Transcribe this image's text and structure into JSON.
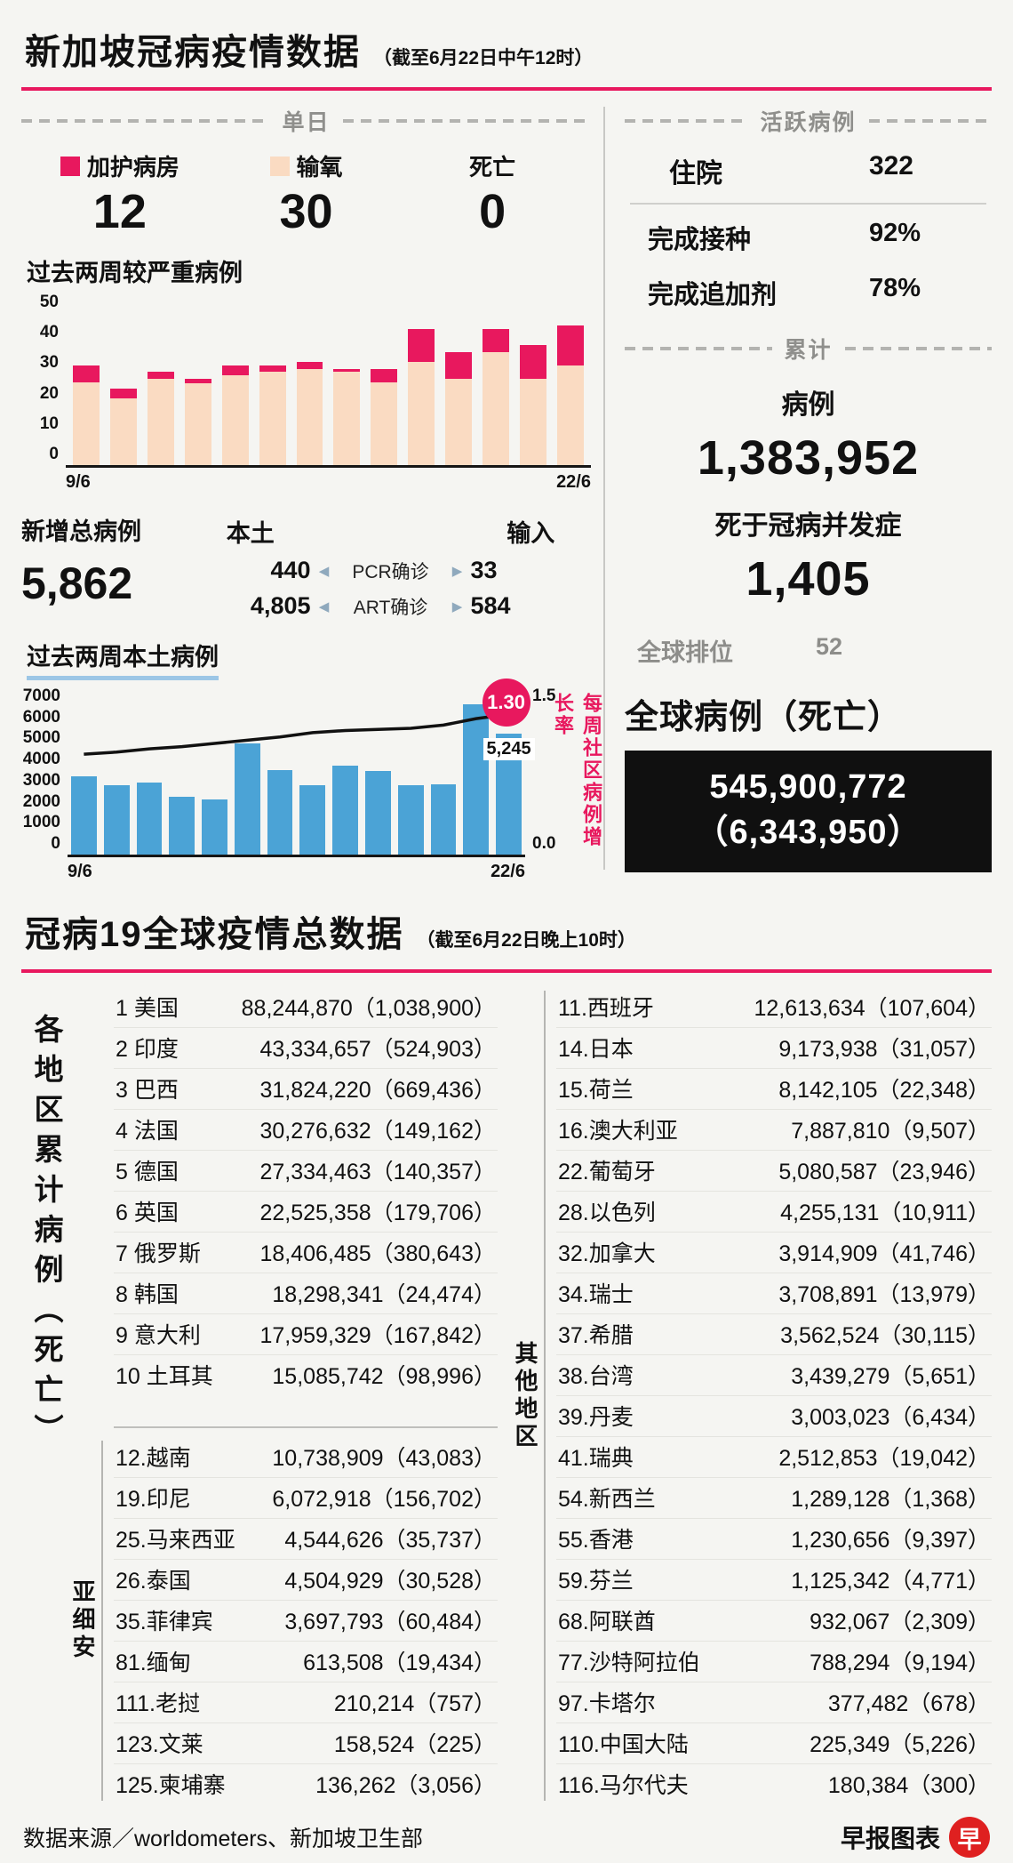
{
  "colors": {
    "accent_pink": "#e8185e",
    "beige": "#fadbc2",
    "blue": "#4ba3d6",
    "box_black": "#101010"
  },
  "header": {
    "title": "新加坡冠病疫情数据",
    "subtitle": "（截至6月22日中午12时）"
  },
  "daily": {
    "section_label": "单日",
    "legend": [
      {
        "label": "加护病房",
        "swatch": "pink-swatch",
        "value": "12"
      },
      {
        "label": "输氧",
        "swatch": "beige-swatch",
        "value": "30"
      },
      {
        "label": "死亡",
        "swatch": null,
        "value": "0"
      }
    ]
  },
  "chart_data": [
    {
      "name": "severe-cases-two-weeks",
      "type": "bar",
      "stacked": true,
      "title": "过去两周较严重病例",
      "x_start_label": "9/6",
      "x_end_label": "22/6",
      "ylim": [
        0,
        50
      ],
      "yticks": [
        0,
        10,
        20,
        30,
        40,
        50
      ],
      "series": [
        {
          "name": "输氧",
          "color": "#fadbc2",
          "values": [
            25,
            20,
            26,
            24.5,
            27,
            28,
            29,
            28,
            25,
            31,
            26,
            34,
            26,
            30
          ]
        },
        {
          "name": "加护病房",
          "color": "#e8185e",
          "values": [
            5,
            3,
            2,
            1.5,
            3,
            2,
            2,
            1,
            4,
            10,
            8,
            7,
            10,
            12
          ]
        }
      ]
    },
    {
      "name": "local-cases-two-weeks",
      "type": "bar+line",
      "title": "过去两周本土病例",
      "x_start_label": "9/6",
      "x_end_label": "22/6",
      "ylim": [
        0,
        7000
      ],
      "yticks": [
        0,
        1000,
        2000,
        3000,
        4000,
        5000,
        6000,
        7000
      ],
      "bar_color": "#4ba3d6",
      "values": [
        3400,
        3000,
        3100,
        2500,
        2400,
        4800,
        3650,
        3000,
        3850,
        3600,
        3000,
        3050,
        6500,
        5245
      ],
      "last_bar_label": "5,245",
      "line": {
        "axis_label": "每周社区病例增长率",
        "ylim": [
          0,
          1.5
        ],
        "yticks": [
          "0.0",
          "1.5"
        ],
        "values": [
          0.93,
          0.95,
          0.98,
          1.0,
          1.03,
          1.06,
          1.09,
          1.13,
          1.15,
          1.16,
          1.17,
          1.2,
          1.26,
          1.3
        ],
        "end_label": "1.30"
      }
    }
  ],
  "new_cases": {
    "title": "新增总病例",
    "total": "5,862",
    "local_label": "本土",
    "import_label": "输入",
    "arrow_left": "◀",
    "arrow_right": "▶",
    "rows": [
      {
        "local": "440",
        "method": "PCR确诊",
        "imported": "33"
      },
      {
        "local": "4,805",
        "method": "ART确诊",
        "imported": "584"
      }
    ]
  },
  "active": {
    "section_label": "活跃病例",
    "hospitalized_label": "住院",
    "hospitalized_value": "322",
    "vaccinated_label": "完成接种",
    "vaccinated_value": "92%",
    "booster_label": "完成追加剂",
    "booster_value": "78%"
  },
  "cumulative": {
    "section_label": "累计",
    "cases_label": "病例",
    "cases_value": "1,383,952",
    "deaths_label": "死于冠病并发症",
    "deaths_value": "1,405",
    "rank_label": "全球排位",
    "rank_value": "52"
  },
  "global": {
    "title": "全球病例（死亡）",
    "cases": "545,900,772",
    "deaths": "（6,343,950）"
  },
  "world": {
    "title": "冠病19全球疫情总数据",
    "subtitle": "（截至6月22日晚上10时）",
    "side_label": "各地区累计病例（死亡）",
    "groups": [
      {
        "label": "",
        "rows": [
          {
            "name": "1 美国",
            "value": "88,244,870（1,038,900）"
          },
          {
            "name": "2 印度",
            "value": "43,334,657（524,903）"
          },
          {
            "name": "3 巴西",
            "value": "31,824,220（669,436）"
          },
          {
            "name": "4 法国",
            "value": "30,276,632（149,162）"
          },
          {
            "name": "5 德国",
            "value": "27,334,463（140,357）"
          },
          {
            "name": "6 英国",
            "value": "22,525,358（179,706）"
          },
          {
            "name": "7 俄罗斯",
            "value": "18,406,485（380,643）"
          },
          {
            "name": "8 韩国",
            "value": "18,298,341（24,474）"
          },
          {
            "name": "9 意大利",
            "value": "17,959,329（167,842）"
          },
          {
            "name": "10 土耳其",
            "value": "15,085,742（98,996）"
          }
        ]
      },
      {
        "label": "亚细安",
        "rows": [
          {
            "name": "12.越南",
            "value": "10,738,909（43,083）"
          },
          {
            "name": "19.印尼",
            "value": "6,072,918（156,702）"
          },
          {
            "name": "25.马来西亚",
            "value": "4,544,626（35,737）"
          },
          {
            "name": "26.泰国",
            "value": "4,504,929（30,528）"
          },
          {
            "name": "35.菲律宾",
            "value": "3,697,793（60,484）"
          },
          {
            "name": "81.缅甸",
            "value": "613,508（19,434）"
          },
          {
            "name": "111.老挝",
            "value": "210,214（757）"
          },
          {
            "name": "123.文莱",
            "value": "158,524（225）"
          },
          {
            "name": "125.柬埔寨",
            "value": "136,262（3,056）"
          }
        ]
      },
      {
        "label": "其他地区",
        "rows": [
          {
            "name": "11.西班牙",
            "value": "12,613,634（107,604）"
          },
          {
            "name": "14.日本",
            "value": "9,173,938（31,057）"
          },
          {
            "name": "15.荷兰",
            "value": "8,142,105（22,348）"
          },
          {
            "name": "16.澳大利亚",
            "value": "7,887,810（9,507）"
          },
          {
            "name": "22.葡萄牙",
            "value": "5,080,587（23,946）"
          },
          {
            "name": "28.以色列",
            "value": "4,255,131（10,911）"
          },
          {
            "name": "32.加拿大",
            "value": "3,914,909（41,746）"
          },
          {
            "name": "34.瑞士",
            "value": "3,708,891（13,979）"
          },
          {
            "name": "37.希腊",
            "value": "3,562,524（30,115）"
          },
          {
            "name": "38.台湾",
            "value": "3,439,279（5,651）"
          },
          {
            "name": "39.丹麦",
            "value": "3,003,023（6,434）"
          },
          {
            "name": "41.瑞典",
            "value": "2,512,853（19,042）"
          },
          {
            "name": "54.新西兰",
            "value": "1,289,128（1,368）"
          },
          {
            "name": "55.香港",
            "value": "1,230,656（9,397）"
          },
          {
            "name": "59.芬兰",
            "value": "1,125,342（4,771）"
          },
          {
            "name": "68.阿联酋",
            "value": "932,067（2,309）"
          },
          {
            "name": "77.沙特阿拉伯",
            "value": "788,294（9,194）"
          },
          {
            "name": "97.卡塔尔",
            "value": "377,482（678）"
          },
          {
            "name": "110.中国大陆",
            "value": "225,349（5,226）"
          },
          {
            "name": "116.马尔代夫",
            "value": "180,384（300）"
          }
        ]
      }
    ]
  },
  "footer": {
    "source": "数据来源／worldometers、新加坡卫生部",
    "credit": "早报图表",
    "logo_char": "早"
  }
}
